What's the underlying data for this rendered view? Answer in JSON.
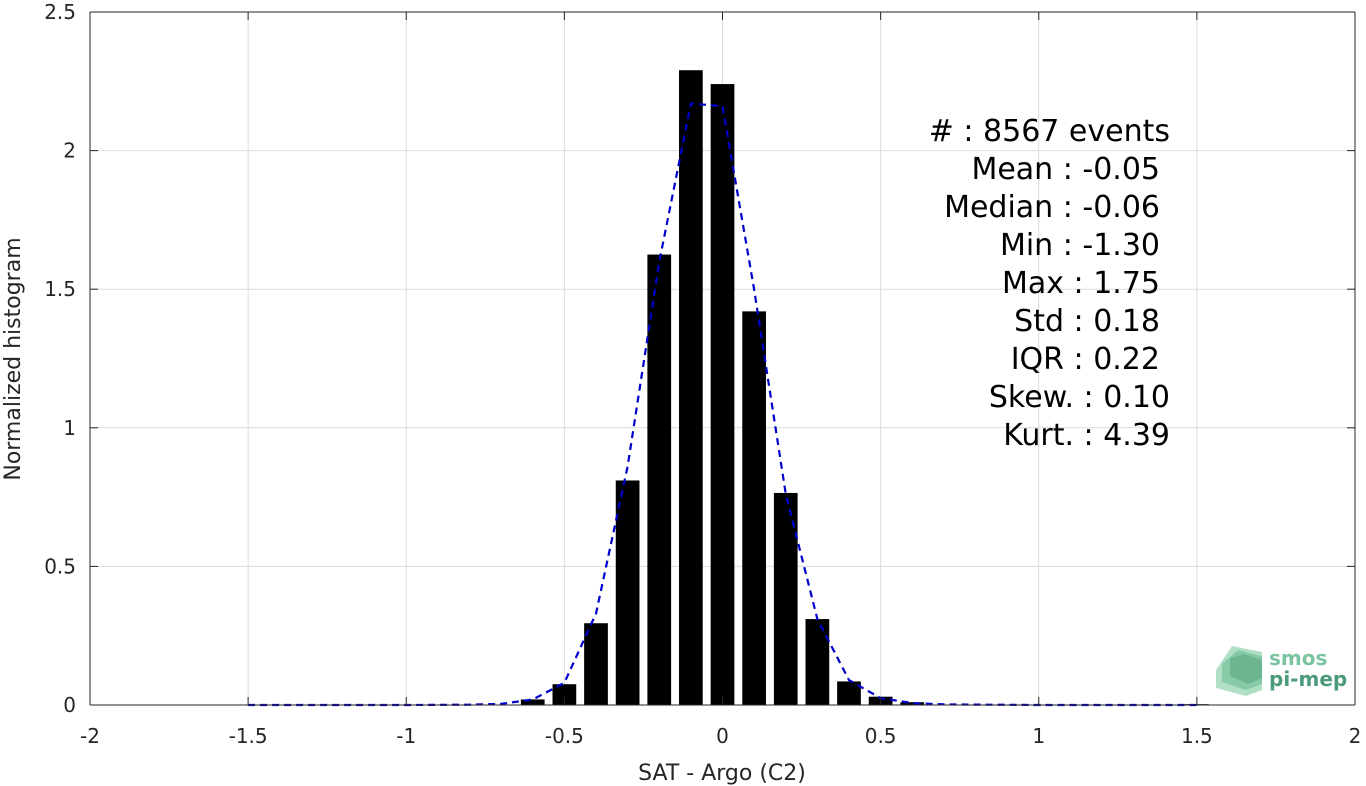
{
  "chart_data": {
    "type": "bar",
    "xlabel": "SAT - Argo (C2)",
    "ylabel": "Normalized histogram",
    "xlim": [
      -2,
      2
    ],
    "ylim": [
      0,
      2.5
    ],
    "x_ticks": [
      "-2",
      "-1.5",
      "-1",
      "-0.5",
      "0",
      "0.5",
      "1",
      "1.5",
      "2"
    ],
    "y_ticks": [
      "0",
      "0.5",
      "1",
      "1.5",
      "2",
      "2.5"
    ],
    "grid": true,
    "bar_color": "#000000",
    "bars": [
      {
        "x": -0.6,
        "value": 0.02
      },
      {
        "x": -0.5,
        "value": 0.075
      },
      {
        "x": -0.4,
        "value": 0.295
      },
      {
        "x": -0.3,
        "value": 0.81
      },
      {
        "x": -0.2,
        "value": 1.625
      },
      {
        "x": -0.1,
        "value": 2.29
      },
      {
        "x": 0.0,
        "value": 2.24
      },
      {
        "x": 0.1,
        "value": 1.42
      },
      {
        "x": 0.2,
        "value": 0.765
      },
      {
        "x": 0.3,
        "value": 0.31
      },
      {
        "x": 0.4,
        "value": 0.085
      },
      {
        "x": 0.5,
        "value": 0.03
      },
      {
        "x": 0.6,
        "value": 0.01
      },
      {
        "x": 1.5,
        "value": 0.003
      }
    ],
    "fit_line": {
      "style": "dashed",
      "color": "#0000cc",
      "points": [
        [
          -1.5,
          0
        ],
        [
          -1.3,
          0
        ],
        [
          -1.0,
          0
        ],
        [
          -0.8,
          0.001
        ],
        [
          -0.7,
          0.004
        ],
        [
          -0.6,
          0.02
        ],
        [
          -0.5,
          0.08
        ],
        [
          -0.4,
          0.33
        ],
        [
          -0.3,
          0.86
        ],
        [
          -0.2,
          1.6
        ],
        [
          -0.1,
          2.17
        ],
        [
          0.0,
          2.16
        ],
        [
          0.1,
          1.5
        ],
        [
          0.2,
          0.76
        ],
        [
          0.3,
          0.31
        ],
        [
          0.4,
          0.09
        ],
        [
          0.5,
          0.025
        ],
        [
          0.6,
          0.007
        ],
        [
          0.7,
          0.002
        ],
        [
          1.0,
          0
        ],
        [
          1.3,
          0
        ],
        [
          1.5,
          0
        ]
      ]
    }
  },
  "stats": [
    {
      "label": "#  : 8567 events"
    },
    {
      "label": "Mean : -0.05"
    },
    {
      "label": "Median : -0.06"
    },
    {
      "label": "Min : -1.30"
    },
    {
      "label": "Max : 1.75"
    },
    {
      "label": "Std : 0.18"
    },
    {
      "label": "IQR : 0.22"
    },
    {
      "label": "Skew. : 0.10"
    },
    {
      "label": "Kurt. : 4.39"
    }
  ],
  "logo": {
    "line1": "smos",
    "line2": "pi-mep",
    "color1": "#7cc4a0",
    "color2": "#4b9a7a"
  }
}
